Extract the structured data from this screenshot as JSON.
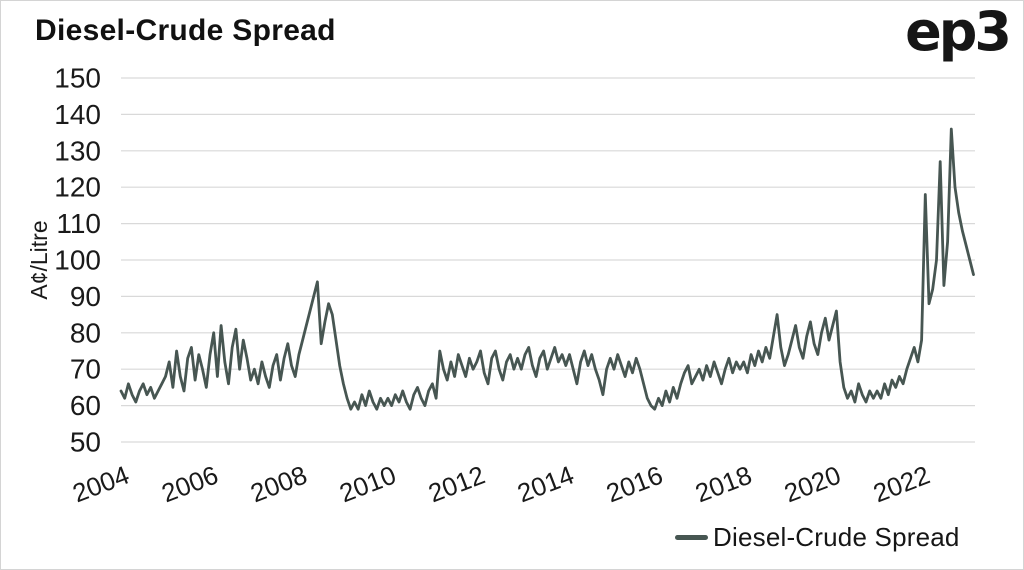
{
  "brand": {
    "logo_text": "ep3"
  },
  "colors": {
    "line": "#475652",
    "grid": "#d9d9d9",
    "text": "#1a1a1a",
    "background": "#ffffff",
    "border": "#d4d4d4"
  },
  "chart_data": {
    "type": "line",
    "title": "Diesel-Crude Spread",
    "xlabel": "",
    "ylabel": "A¢/Litre",
    "ylim": [
      50,
      150
    ],
    "xlim": [
      2004,
      2023.2
    ],
    "yticks": [
      150,
      140,
      130,
      120,
      110,
      100,
      90,
      80,
      70,
      60,
      50
    ],
    "xticks": [
      2004,
      2006,
      2008,
      2010,
      2012,
      2014,
      2016,
      2018,
      2020,
      2022
    ],
    "grid": "horizontal",
    "legend_position": "bottom-right",
    "legend": {
      "label": "Diesel-Crude Spread"
    },
    "series": [
      {
        "name": "Diesel-Crude Spread",
        "color": "#475652",
        "start_year": 2004,
        "points_per_year": 12,
        "unit": "A¢/Litre",
        "values": [
          64,
          62,
          66,
          63,
          61,
          64,
          66,
          63,
          65,
          62,
          64,
          66,
          68,
          72,
          65,
          75,
          68,
          64,
          73,
          76,
          67,
          74,
          70,
          65,
          74,
          80,
          68,
          82,
          72,
          66,
          76,
          81,
          70,
          78,
          73,
          67,
          70,
          66,
          72,
          68,
          65,
          71,
          74,
          67,
          73,
          77,
          71,
          68,
          74,
          78,
          82,
          86,
          90,
          94,
          77,
          83,
          88,
          85,
          78,
          71,
          66,
          62,
          59,
          61,
          59,
          63,
          60,
          64,
          61,
          59,
          62,
          60,
          62,
          60,
          63,
          61,
          64,
          61,
          59,
          63,
          65,
          62,
          60,
          64,
          66,
          62,
          75,
          70,
          67,
          72,
          68,
          74,
          71,
          68,
          73,
          70,
          72,
          75,
          69,
          66,
          73,
          75,
          70,
          67,
          72,
          74,
          70,
          73,
          70,
          74,
          76,
          71,
          68,
          73,
          75,
          70,
          73,
          76,
          72,
          74,
          71,
          74,
          70,
          66,
          72,
          75,
          71,
          74,
          70,
          67,
          63,
          70,
          73,
          70,
          74,
          71,
          68,
          72,
          69,
          73,
          70,
          66,
          62,
          60,
          59,
          62,
          60,
          64,
          61,
          65,
          62,
          66,
          69,
          71,
          66,
          68,
          70,
          67,
          71,
          68,
          72,
          69,
          66,
          70,
          73,
          69,
          72,
          70,
          72,
          69,
          74,
          71,
          75,
          72,
          76,
          73,
          79,
          85,
          76,
          71,
          74,
          78,
          82,
          76,
          73,
          79,
          83,
          77,
          74,
          80,
          84,
          78,
          82,
          86,
          72,
          65,
          62,
          64,
          61,
          66,
          63,
          61,
          64,
          62,
          64,
          62,
          66,
          63,
          67,
          65,
          68,
          66,
          70,
          73,
          76,
          72,
          78,
          118,
          88,
          92,
          100,
          127,
          93,
          105,
          136,
          120,
          113,
          108,
          104,
          100,
          96
        ]
      }
    ]
  }
}
